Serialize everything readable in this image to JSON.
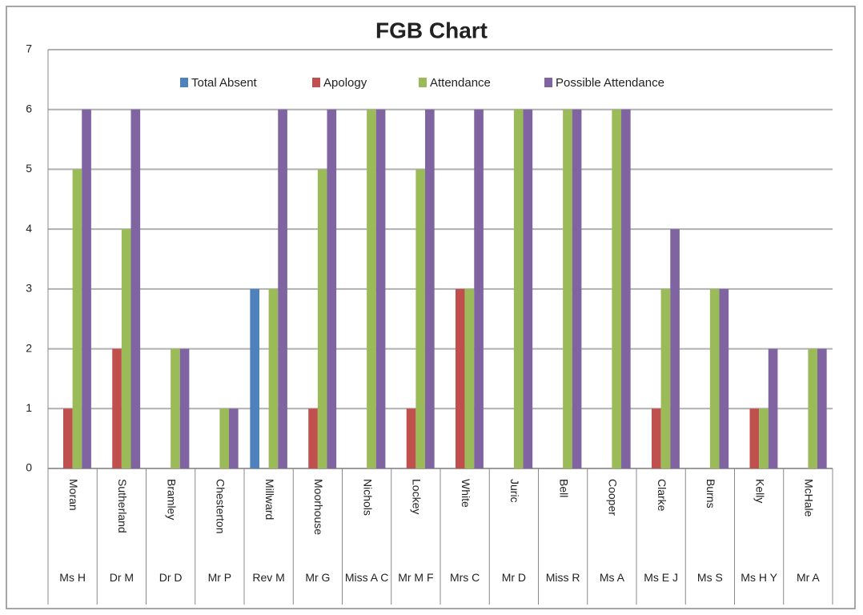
{
  "chart_data": {
    "type": "bar",
    "title": "FGB Chart",
    "categories": [
      "Moran",
      "Sutherland",
      "Bramley",
      "Chesterton",
      "Millward",
      "Moorhouse",
      "Nichols",
      "Lockey",
      "White",
      "Juric",
      "Bell",
      "Cooper",
      "Clarke",
      "Burns",
      "Kelly",
      "McHale"
    ],
    "category_groups": [
      "Ms H",
      "Dr M",
      "Dr D",
      "Mr P",
      "Rev M",
      "Mr G",
      "Miss A C",
      "Mr M F",
      "Mrs C",
      "Mr D",
      "Miss R",
      "Ms A",
      "Ms E J",
      "Ms S",
      "Ms H Y",
      "Mr A"
    ],
    "series": [
      {
        "name": "Total Absent",
        "color": "#4f81bd",
        "values": [
          0,
          0,
          0,
          0,
          3,
          0,
          0,
          0,
          0,
          0,
          0,
          0,
          0,
          0,
          0,
          0
        ]
      },
      {
        "name": "Apology",
        "color": "#c0504d",
        "values": [
          1,
          2,
          0,
          0,
          0,
          1,
          0,
          1,
          3,
          0,
          0,
          0,
          1,
          0,
          1,
          0
        ]
      },
      {
        "name": "Attendance",
        "color": "#9bbb59",
        "values": [
          5,
          4,
          2,
          1,
          3,
          5,
          6,
          5,
          3,
          6,
          6,
          6,
          3,
          3,
          1,
          2
        ]
      },
      {
        "name": "Possible Attendance",
        "color": "#8064a2",
        "values": [
          6,
          6,
          2,
          1,
          6,
          6,
          6,
          6,
          6,
          6,
          6,
          6,
          4,
          3,
          2,
          2
        ]
      }
    ],
    "ylim": [
      0,
      7
    ],
    "yticks": [
      0,
      1,
      2,
      3,
      4,
      5,
      6,
      7
    ],
    "grid": true,
    "legend": "top"
  }
}
